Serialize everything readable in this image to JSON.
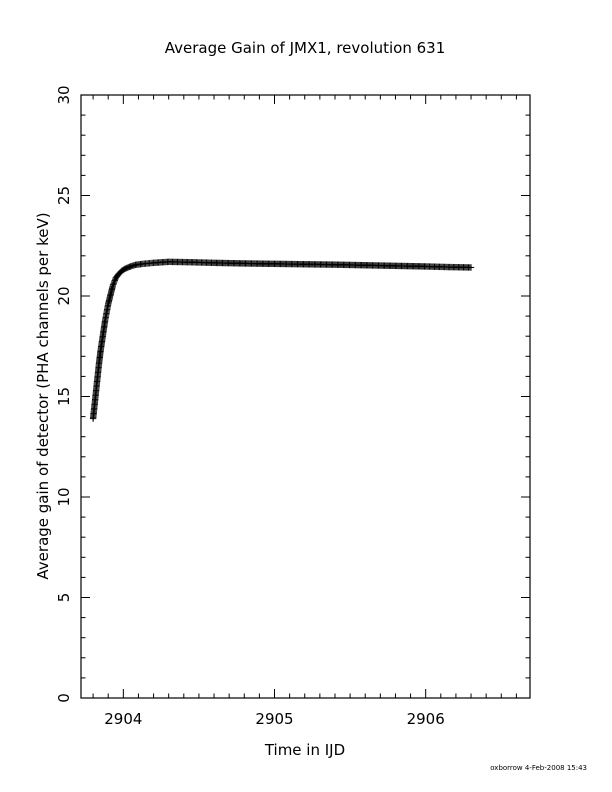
{
  "chart_data": {
    "type": "scatter",
    "title": "Average Gain of JMX1, revolution 631",
    "xlabel": "Time in IJD",
    "ylabel": "Average gain of detector (PHA channels per keV)",
    "xlim": [
      2903.72,
      2906.69
    ],
    "ylim": [
      0,
      30
    ],
    "x_ticks": [
      "2904",
      "2905",
      "2906"
    ],
    "y_ticks": [
      "0",
      "5",
      "10",
      "15",
      "20",
      "25",
      "30"
    ],
    "marker": "plus",
    "grid": false,
    "series": [
      {
        "points": [
          [
            2903.8,
            13.9
          ],
          [
            2903.81,
            14.6
          ],
          [
            2903.82,
            15.3
          ],
          [
            2903.83,
            16.0
          ],
          [
            2903.84,
            16.7
          ],
          [
            2903.85,
            17.3
          ],
          [
            2903.86,
            17.8
          ],
          [
            2903.87,
            18.3
          ],
          [
            2903.88,
            18.8
          ],
          [
            2903.89,
            19.2
          ],
          [
            2903.9,
            19.6
          ],
          [
            2903.91,
            19.9
          ],
          [
            2903.92,
            20.2
          ],
          [
            2903.93,
            20.5
          ],
          [
            2903.94,
            20.7
          ],
          [
            2903.95,
            20.9
          ],
          [
            2903.97,
            21.1
          ],
          [
            2903.99,
            21.25
          ],
          [
            2904.01,
            21.35
          ],
          [
            2904.04,
            21.45
          ],
          [
            2904.08,
            21.55
          ],
          [
            2904.13,
            21.6
          ],
          [
            2904.2,
            21.65
          ],
          [
            2904.3,
            21.7
          ],
          [
            2904.45,
            21.68
          ],
          [
            2904.6,
            21.65
          ],
          [
            2904.8,
            21.62
          ],
          [
            2905.0,
            21.6
          ],
          [
            2905.2,
            21.58
          ],
          [
            2905.4,
            21.56
          ],
          [
            2905.6,
            21.53
          ],
          [
            2905.8,
            21.5
          ],
          [
            2906.0,
            21.47
          ],
          [
            2906.15,
            21.44
          ],
          [
            2906.3,
            21.42
          ]
        ]
      }
    ]
  },
  "footer": "oxborrow  4-Feb-2008 15:43"
}
